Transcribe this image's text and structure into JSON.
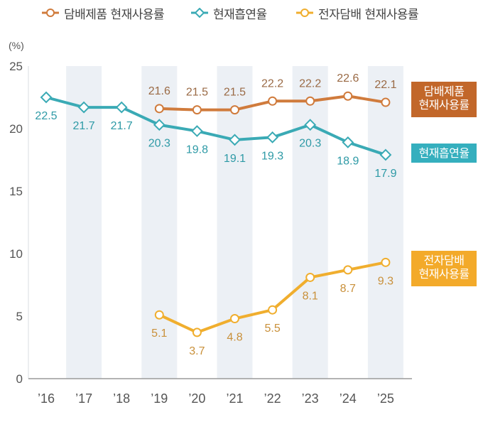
{
  "chart_data": {
    "type": "line",
    "title": "",
    "xlabel": "",
    "ylabel": "(%)",
    "ylim": [
      0,
      25
    ],
    "yticks": [
      0,
      5,
      10,
      15,
      20,
      25
    ],
    "categories": [
      "’16",
      "’17",
      "’18",
      "’19",
      "’20",
      "’21",
      "’22",
      "’23",
      "’24",
      "’25"
    ],
    "shaded_categories": [
      "’17",
      "’19",
      "’21",
      "’23",
      "’25"
    ],
    "grid": false,
    "legend_position": "top",
    "series": [
      {
        "name": "담배제품 현재사용률",
        "side_label": [
          "담배제품",
          "현재사용률"
        ],
        "marker": "circle",
        "color": "#D07B3C",
        "label_color": "#9A6A45",
        "box_color": "#C2672A",
        "values": [
          null,
          null,
          null,
          21.6,
          21.5,
          21.5,
          22.2,
          22.2,
          22.6,
          22.1
        ],
        "labels": [
          null,
          null,
          null,
          "21.6",
          "21.5",
          "21.5",
          "22.2",
          "22.2",
          "22.6",
          "22.1"
        ],
        "label_position": "above"
      },
      {
        "name": "현재흡연율",
        "side_label": [
          "현재흡연율"
        ],
        "marker": "diamond",
        "color": "#3AAAB5",
        "label_color": "#2E9AA6",
        "box_color": "#35AFBE",
        "values": [
          22.5,
          21.7,
          21.7,
          20.3,
          19.8,
          19.1,
          19.3,
          20.3,
          18.9,
          17.9
        ],
        "labels": [
          "22.5",
          "21.7",
          "21.7",
          "20.3",
          "19.8",
          "19.1",
          "19.3",
          "20.3",
          "18.9",
          "17.9"
        ],
        "label_position": "below"
      },
      {
        "name": "전자담배 현재사용률",
        "side_label": [
          "전자담배",
          "현재사용률"
        ],
        "marker": "circle",
        "color": "#F0AE2E",
        "label_color": "#C9903A",
        "box_color": "#F3AA2A",
        "values": [
          null,
          null,
          null,
          5.1,
          3.7,
          4.8,
          5.5,
          8.1,
          8.7,
          9.3
        ],
        "labels": [
          null,
          null,
          null,
          "5.1",
          "3.7",
          "4.8",
          "5.5",
          "8.1",
          "8.7",
          "9.3"
        ],
        "label_position": "below"
      }
    ]
  }
}
